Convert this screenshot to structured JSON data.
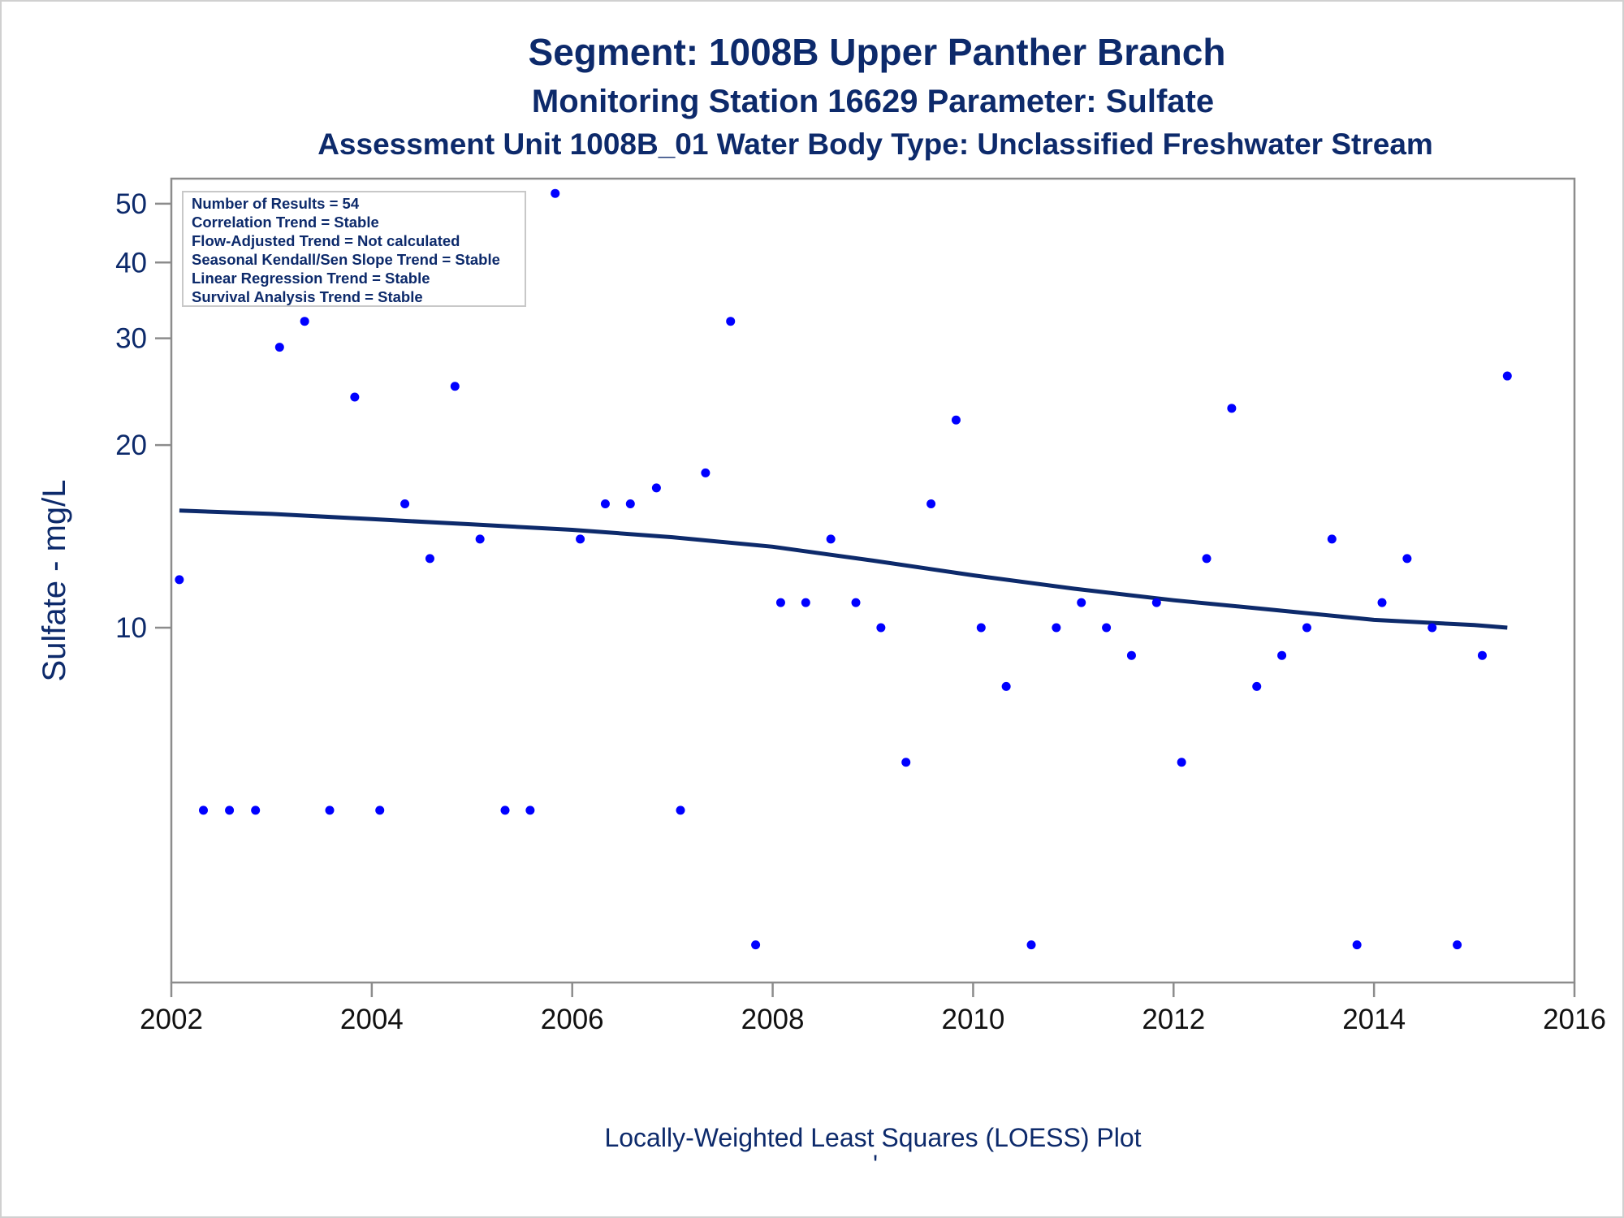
{
  "titles": {
    "line1": "Segment: 1008B  Upper Panther Branch",
    "line2": "Monitoring Station 16629 Parameter: Sulfate",
    "line3": "Assessment Unit 1008B_01   Water Body Type: Unclassified Freshwater Stream"
  },
  "stats_box": [
    "Number of Results = 54",
    "Correlation Trend = Stable",
    "Flow-Adjusted Trend = Not calculated",
    "Seasonal Kendall/Sen Slope Trend = Stable",
    "Linear Regression Trend = Stable",
    "Survival Analysis Trend = Stable"
  ],
  "footnote": "Locally-Weighted Least Squares (LOESS) Plot",
  "footnote_mark": "'",
  "colors": {
    "points": "#0000ff",
    "loess_line": "#0d2a6b",
    "text": "#0d2a6b",
    "axis": "#8c8c8c"
  },
  "chart_data": {
    "type": "scatter",
    "title": "Segment: 1008B  Upper Panther Branch",
    "xlabel": "",
    "ylabel": "Sulfate - mg/L",
    "y_scale": "log",
    "xlim": [
      2002,
      2016
    ],
    "ylim": [
      2.6,
      55
    ],
    "x_ticks": [
      2002,
      2004,
      2006,
      2008,
      2010,
      2012,
      2014,
      2016
    ],
    "y_ticks": [
      10,
      20,
      30,
      40,
      50
    ],
    "grid": false,
    "legend": "top-left",
    "points": [
      {
        "x": 2002.08,
        "y": 12
      },
      {
        "x": 2002.32,
        "y": 5
      },
      {
        "x": 2002.58,
        "y": 5
      },
      {
        "x": 2002.84,
        "y": 5
      },
      {
        "x": 2003.08,
        "y": 29
      },
      {
        "x": 2003.33,
        "y": 32
      },
      {
        "x": 2003.58,
        "y": 5
      },
      {
        "x": 2003.83,
        "y": 24
      },
      {
        "x": 2004.08,
        "y": 5
      },
      {
        "x": 2004.33,
        "y": 16
      },
      {
        "x": 2004.58,
        "y": 13
      },
      {
        "x": 2004.83,
        "y": 25
      },
      {
        "x": 2005.08,
        "y": 14
      },
      {
        "x": 2005.33,
        "y": 5
      },
      {
        "x": 2005.58,
        "y": 5
      },
      {
        "x": 2005.83,
        "y": 52
      },
      {
        "x": 2006.08,
        "y": 14
      },
      {
        "x": 2006.33,
        "y": 16
      },
      {
        "x": 2006.58,
        "y": 16
      },
      {
        "x": 2006.84,
        "y": 17
      },
      {
        "x": 2007.08,
        "y": 5
      },
      {
        "x": 2007.33,
        "y": 18
      },
      {
        "x": 2007.58,
        "y": 32
      },
      {
        "x": 2007.83,
        "y": 3
      },
      {
        "x": 2008.08,
        "y": 11
      },
      {
        "x": 2008.33,
        "y": 11
      },
      {
        "x": 2008.58,
        "y": 14
      },
      {
        "x": 2008.83,
        "y": 11
      },
      {
        "x": 2009.08,
        "y": 10
      },
      {
        "x": 2009.33,
        "y": 6
      },
      {
        "x": 2009.58,
        "y": 16
      },
      {
        "x": 2009.83,
        "y": 22
      },
      {
        "x": 2010.08,
        "y": 10
      },
      {
        "x": 2010.33,
        "y": 8
      },
      {
        "x": 2010.58,
        "y": 3
      },
      {
        "x": 2010.83,
        "y": 10
      },
      {
        "x": 2011.08,
        "y": 11
      },
      {
        "x": 2011.33,
        "y": 10
      },
      {
        "x": 2011.58,
        "y": 9
      },
      {
        "x": 2011.83,
        "y": 11
      },
      {
        "x": 2012.08,
        "y": 6
      },
      {
        "x": 2012.33,
        "y": 13
      },
      {
        "x": 2012.58,
        "y": 23
      },
      {
        "x": 2012.83,
        "y": 8
      },
      {
        "x": 2013.08,
        "y": 9
      },
      {
        "x": 2013.33,
        "y": 10
      },
      {
        "x": 2013.58,
        "y": 14
      },
      {
        "x": 2013.83,
        "y": 3
      },
      {
        "x": 2014.08,
        "y": 11
      },
      {
        "x": 2014.33,
        "y": 13
      },
      {
        "x": 2014.58,
        "y": 10
      },
      {
        "x": 2014.83,
        "y": 3
      },
      {
        "x": 2015.08,
        "y": 9
      },
      {
        "x": 2015.33,
        "y": 26
      }
    ],
    "loess_line": [
      {
        "x": 2002.08,
        "y": 15.6
      },
      {
        "x": 2003.0,
        "y": 15.4
      },
      {
        "x": 2004.0,
        "y": 15.1
      },
      {
        "x": 2005.0,
        "y": 14.8
      },
      {
        "x": 2006.0,
        "y": 14.5
      },
      {
        "x": 2007.0,
        "y": 14.1
      },
      {
        "x": 2008.0,
        "y": 13.6
      },
      {
        "x": 2009.0,
        "y": 12.9
      },
      {
        "x": 2010.0,
        "y": 12.2
      },
      {
        "x": 2011.0,
        "y": 11.6
      },
      {
        "x": 2012.0,
        "y": 11.1
      },
      {
        "x": 2013.0,
        "y": 10.7
      },
      {
        "x": 2014.0,
        "y": 10.3
      },
      {
        "x": 2015.0,
        "y": 10.1
      },
      {
        "x": 2015.33,
        "y": 10.0
      }
    ]
  }
}
